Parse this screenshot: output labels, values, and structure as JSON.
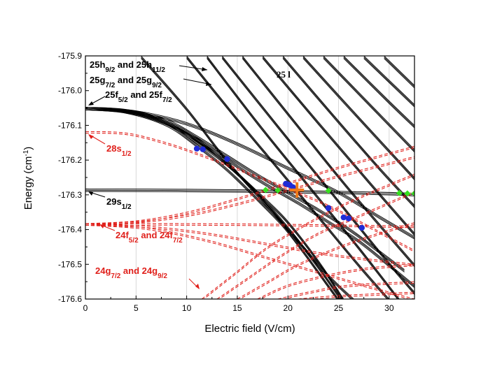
{
  "chart_data": {
    "type": "line",
    "title": "",
    "xlabel": "Electric field (V/cm)",
    "ylabel_main": "Energy (cm",
    "ylabel_sup": "-1",
    "ylabel_end": ")",
    "xlim": [
      0,
      32.5
    ],
    "ylim": [
      -176.6,
      -175.9
    ],
    "xticks": [
      0,
      5,
      10,
      15,
      20,
      25,
      30
    ],
    "yticks": [
      -176.6,
      -176.5,
      -176.4,
      -176.3,
      -176.2,
      -176.1,
      -176.0,
      -175.9
    ],
    "ytick_labels": [
      "-176.6",
      "-176.5",
      "-176.4",
      "-176.3",
      "-176.2",
      "-176.1",
      "-176.0",
      "-175.9"
    ],
    "grid": "vertical",
    "colors": {
      "black_series": "#000000",
      "red_series": "#e0201b",
      "blue_marker": "#1f2bd6",
      "green_marker": "#36e01f",
      "orange_marker": "#f07a1a"
    },
    "annotations": {
      "h_label": {
        "a": "25h",
        "a_sub": "9/2",
        "b": " and 25h",
        "b_sub": "11/2"
      },
      "g_label": {
        "a": "25g",
        "a_sub": "7/2",
        "b": " and 25g",
        "b_sub": "9/2"
      },
      "f_label": {
        "a": "25f",
        "a_sub": "5/2",
        "b": " and 25f",
        "b_sub": "7/2"
      },
      "l_label": "25 l",
      "s28_label": {
        "a": "28s",
        "a_sub": "1/2"
      },
      "s29_label": {
        "a": "29s",
        "a_sub": "1/2"
      },
      "f24_label": {
        "a": "24f",
        "a_sub": "5/2",
        "b": " and 24f",
        "b_sub": "7/2"
      },
      "g24_label": {
        "a": "24g",
        "a_sub": "7/2",
        "b": " and 24g",
        "b_sub": "9/2"
      }
    },
    "series": [
      {
        "name": "25f black curve 1",
        "style": "black",
        "points": [
          [
            0,
            -176.048
          ],
          [
            4,
            -176.054
          ],
          [
            8,
            -176.083
          ],
          [
            11,
            -176.13
          ],
          [
            14,
            -176.185
          ],
          [
            17,
            -176.24
          ],
          [
            20,
            -176.29
          ],
          [
            23,
            -176.34
          ],
          [
            26,
            -176.395
          ],
          [
            29,
            -176.46
          ],
          [
            31.5,
            -176.515
          ]
        ]
      },
      {
        "name": "25f black curve 2",
        "style": "black",
        "points": [
          [
            0,
            -176.048
          ],
          [
            5,
            -176.06
          ],
          [
            9,
            -176.1
          ],
          [
            12,
            -176.155
          ],
          [
            15,
            -176.215
          ],
          [
            18,
            -176.27
          ],
          [
            21,
            -176.32
          ],
          [
            24,
            -176.375
          ],
          [
            27,
            -176.43
          ],
          [
            30,
            -176.5
          ],
          [
            32.5,
            -176.56
          ]
        ]
      },
      {
        "name": "25f black curve 3",
        "style": "black",
        "points": [
          [
            0,
            -176.048
          ],
          [
            4,
            -176.056
          ],
          [
            8,
            -176.09
          ],
          [
            11,
            -176.145
          ],
          [
            14,
            -176.21
          ],
          [
            17,
            -176.29
          ],
          [
            19.5,
            -176.36
          ],
          [
            21.5,
            -176.43
          ],
          [
            23.5,
            -176.51
          ],
          [
            25.5,
            -176.6
          ]
        ]
      },
      {
        "name": "25f black curve 4",
        "style": "black",
        "points": [
          [
            0,
            -176.048
          ],
          [
            4,
            -176.058
          ],
          [
            8,
            -176.095
          ],
          [
            11,
            -176.155
          ],
          [
            14,
            -176.225
          ],
          [
            17,
            -176.31
          ],
          [
            19.5,
            -176.385
          ],
          [
            21.5,
            -176.46
          ],
          [
            23.5,
            -176.54
          ],
          [
            25,
            -176.6
          ]
        ]
      },
      {
        "name": "25f black curve 5",
        "style": "black",
        "points": [
          [
            0,
            -176.048
          ],
          [
            3,
            -176.052
          ],
          [
            6,
            -176.07
          ],
          [
            9,
            -176.105
          ],
          [
            12,
            -176.16
          ],
          [
            15,
            -176.235
          ],
          [
            18,
            -176.325
          ],
          [
            20.5,
            -176.41
          ],
          [
            23,
            -176.505
          ],
          [
            25.3,
            -176.6
          ]
        ]
      },
      {
        "name": "25f black curve 6 (thin)",
        "style": "black",
        "points": [
          [
            0,
            -176.048
          ],
          [
            5,
            -176.058
          ],
          [
            10,
            -176.092
          ],
          [
            15,
            -176.15
          ],
          [
            20,
            -176.22
          ],
          [
            25,
            -176.29
          ],
          [
            29,
            -176.36
          ],
          [
            32.5,
            -176.42
          ]
        ]
      },
      {
        "name": "29s black curve",
        "style": "black",
        "points": [
          [
            0,
            -176.283
          ],
          [
            10,
            -176.284
          ],
          [
            20,
            -176.287
          ],
          [
            30,
            -176.293
          ],
          [
            32.5,
            -176.296
          ]
        ]
      },
      {
        "name": "25 l manifold 1",
        "style": "black",
        "points": [
          [
            5.5,
            -175.9
          ],
          [
            10,
            -176.05
          ],
          [
            14,
            -176.2
          ],
          [
            18,
            -176.33
          ],
          [
            21,
            -176.43
          ],
          [
            24,
            -176.53
          ],
          [
            26.5,
            -176.6
          ]
        ]
      },
      {
        "name": "25 l manifold 2",
        "style": "black",
        "points": [
          [
            10,
            -175.9
          ],
          [
            15,
            -176.08
          ],
          [
            19,
            -176.22
          ],
          [
            23,
            -176.36
          ],
          [
            27,
            -176.5
          ],
          [
            30,
            -176.6
          ]
        ]
      },
      {
        "name": "25 l manifold 3",
        "style": "black",
        "points": [
          [
            12,
            -175.9
          ],
          [
            17,
            -176.09
          ],
          [
            22,
            -176.27
          ],
          [
            27,
            -176.45
          ],
          [
            31,
            -176.6
          ]
        ]
      },
      {
        "name": "25 l manifold 4",
        "style": "black",
        "points": [
          [
            13.5,
            -175.9
          ],
          [
            19,
            -176.1
          ],
          [
            24,
            -176.28
          ],
          [
            29,
            -176.46
          ],
          [
            32.5,
            -176.58
          ]
        ]
      },
      {
        "name": "25 l manifold 5",
        "style": "black",
        "points": [
          [
            15.5,
            -175.9
          ],
          [
            21,
            -176.1
          ],
          [
            26,
            -176.28
          ],
          [
            32.5,
            -176.5
          ]
        ]
      },
      {
        "name": "25 l manifold 6",
        "style": "black",
        "points": [
          [
            17.5,
            -175.9
          ],
          [
            23,
            -176.09
          ],
          [
            28,
            -176.26
          ],
          [
            32.5,
            -176.41
          ]
        ]
      },
      {
        "name": "25 l manifold 7",
        "style": "black",
        "points": [
          [
            19.5,
            -175.9
          ],
          [
            24.5,
            -176.07
          ],
          [
            29,
            -176.22
          ],
          [
            32.5,
            -176.33
          ]
        ]
      },
      {
        "name": "25 l manifold 8",
        "style": "black",
        "points": [
          [
            21.5,
            -175.9
          ],
          [
            26.5,
            -176.06
          ],
          [
            32.5,
            -176.25
          ]
        ]
      },
      {
        "name": "25 l manifold 9",
        "style": "black",
        "points": [
          [
            23.5,
            -175.9
          ],
          [
            28.5,
            -176.05
          ],
          [
            32.5,
            -176.17
          ]
        ]
      },
      {
        "name": "25 l manifold 10",
        "style": "black",
        "points": [
          [
            25.5,
            -175.9
          ],
          [
            30,
            -176.03
          ],
          [
            32.5,
            -176.1
          ]
        ]
      },
      {
        "name": "25 l manifold 11",
        "style": "black",
        "points": [
          [
            27.5,
            -175.9
          ],
          [
            32.5,
            -176.04
          ]
        ]
      },
      {
        "name": "25 l manifold 12",
        "style": "black",
        "points": [
          [
            29.5,
            -175.9
          ],
          [
            32.5,
            -175.985
          ]
        ]
      },
      {
        "name": "28s red dashed",
        "style": "red",
        "points": [
          [
            0,
            -176.118
          ],
          [
            4,
            -176.122
          ],
          [
            8,
            -176.15
          ],
          [
            12,
            -176.19
          ],
          [
            16,
            -176.235
          ],
          [
            20,
            -176.28
          ],
          [
            24,
            -176.33
          ],
          [
            28,
            -176.39
          ],
          [
            32.5,
            -176.46
          ]
        ]
      },
      {
        "name": "24f red dashed 1",
        "style": "red",
        "points": [
          [
            0,
            -176.383
          ],
          [
            10,
            -176.383
          ],
          [
            20,
            -176.385
          ],
          [
            32.5,
            -176.39
          ]
        ]
      },
      {
        "name": "24f red dashed up 1",
        "style": "red",
        "points": [
          [
            0,
            -176.383
          ],
          [
            5,
            -176.375
          ],
          [
            10,
            -176.35
          ],
          [
            15,
            -176.31
          ],
          [
            20,
            -176.265
          ],
          [
            25,
            -176.22
          ],
          [
            32.5,
            -176.16
          ]
        ]
      },
      {
        "name": "24f red dashed up 2",
        "style": "red",
        "points": [
          [
            0,
            -176.383
          ],
          [
            5,
            -176.377
          ],
          [
            10,
            -176.358
          ],
          [
            15,
            -176.325
          ],
          [
            20,
            -176.285
          ],
          [
            25,
            -176.245
          ],
          [
            32.5,
            -176.19
          ]
        ]
      },
      {
        "name": "24f red dashed down 1",
        "style": "red",
        "points": [
          [
            0,
            -176.383
          ],
          [
            6,
            -176.39
          ],
          [
            12,
            -176.41
          ],
          [
            18,
            -176.44
          ],
          [
            24,
            -176.47
          ],
          [
            32.5,
            -176.5
          ]
        ]
      },
      {
        "name": "24f red dashed down 2",
        "style": "red",
        "points": [
          [
            0,
            -176.383
          ],
          [
            6,
            -176.395
          ],
          [
            12,
            -176.43
          ],
          [
            18,
            -176.48
          ],
          [
            24,
            -176.53
          ],
          [
            30,
            -176.58
          ],
          [
            32.5,
            -176.6
          ]
        ]
      },
      {
        "name": "24g red dashed 1",
        "style": "red",
        "points": [
          [
            11.5,
            -176.6
          ],
          [
            15,
            -176.52
          ],
          [
            18,
            -176.45
          ],
          [
            22,
            -176.38
          ],
          [
            26,
            -176.32
          ],
          [
            30,
            -176.27
          ],
          [
            32.5,
            -176.24
          ]
        ]
      },
      {
        "name": "24g red dashed 2",
        "style": "red",
        "points": [
          [
            13,
            -176.6
          ],
          [
            16,
            -176.54
          ],
          [
            19,
            -176.48
          ],
          [
            23,
            -176.41
          ],
          [
            27,
            -176.36
          ],
          [
            32.5,
            -176.29
          ]
        ]
      },
      {
        "name": "24g red dashed 3",
        "style": "red",
        "points": [
          [
            15,
            -176.6
          ],
          [
            18,
            -176.55
          ],
          [
            21,
            -176.5
          ],
          [
            25,
            -176.45
          ],
          [
            29,
            -176.41
          ],
          [
            32.5,
            -176.38
          ]
        ]
      },
      {
        "name": "24g red dashed 4",
        "style": "red",
        "points": [
          [
            17,
            -176.6
          ],
          [
            20,
            -176.56
          ],
          [
            24,
            -176.53
          ],
          [
            28,
            -176.51
          ],
          [
            32.5,
            -176.5
          ]
        ]
      },
      {
        "name": "24g red dashed 5",
        "style": "red",
        "points": [
          [
            19,
            -176.6
          ],
          [
            22,
            -176.58
          ],
          [
            26,
            -176.56
          ],
          [
            32.5,
            -176.55
          ]
        ]
      },
      {
        "name": "24g red dashed 6",
        "style": "red",
        "points": [
          [
            21,
            -176.6
          ],
          [
            25,
            -176.59
          ],
          [
            32.5,
            -176.58
          ]
        ]
      }
    ],
    "markers": {
      "blue": [
        [
          11,
          -176.167
        ],
        [
          11.6,
          -176.169
        ],
        [
          14,
          -176.197
        ],
        [
          19.8,
          -176.268
        ],
        [
          20,
          -176.27
        ],
        [
          20.2,
          -176.272
        ],
        [
          20.5,
          -176.278
        ],
        [
          24,
          -176.338
        ],
        [
          25.5,
          -176.365
        ],
        [
          26,
          -176.368
        ],
        [
          27.3,
          -176.395
        ]
      ],
      "green": [
        [
          17.8,
          -176.286
        ],
        [
          19,
          -176.287
        ],
        [
          24,
          -176.288
        ],
        [
          31,
          -176.295
        ],
        [
          31.8,
          -176.296
        ],
        [
          32.5,
          -176.296
        ]
      ],
      "orange": [
        [
          20.9,
          -176.286
        ]
      ]
    }
  }
}
